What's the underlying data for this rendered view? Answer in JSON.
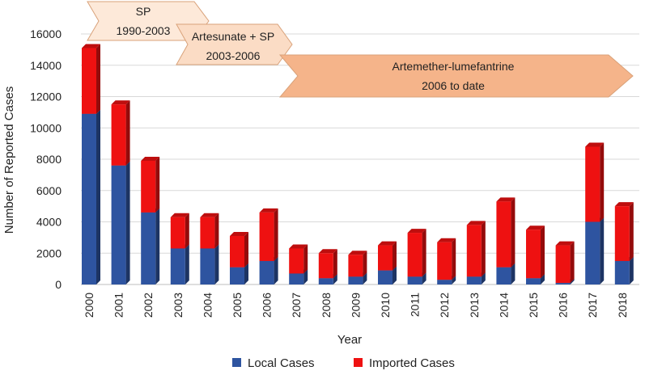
{
  "chart_data": {
    "type": "bar",
    "stacked": true,
    "xlabel": "Year",
    "ylabel": "Number of Reported Cases",
    "ylim": [
      0,
      16000
    ],
    "yticks": [
      0,
      2000,
      4000,
      6000,
      8000,
      10000,
      12000,
      14000,
      16000
    ],
    "grid": true,
    "legend_position": "bottom",
    "categories": [
      "2000",
      "2001",
      "2002",
      "2003",
      "2004",
      "2005",
      "2006",
      "2007",
      "2008",
      "2009",
      "2010",
      "2011",
      "2012",
      "2013",
      "2014",
      "2015",
      "2016",
      "2017",
      "2018"
    ],
    "series": [
      {
        "name": "Local Cases",
        "color": "#2e54a0",
        "values": [
          10900,
          7600,
          4600,
          2300,
          2300,
          1100,
          1500,
          700,
          400,
          500,
          900,
          500,
          300,
          500,
          1100,
          400,
          100,
          4000,
          1500
        ]
      },
      {
        "name": "Imported Cases",
        "color": "#ee1111",
        "values": [
          4200,
          3900,
          3300,
          2000,
          2000,
          2000,
          3100,
          1600,
          1600,
          1400,
          1600,
          2800,
          2400,
          3300,
          4200,
          3100,
          2400,
          4800,
          3500
        ]
      }
    ],
    "annotations": [
      {
        "line1": "SP",
        "line2": "1990-2003",
        "color": "#fde9d9"
      },
      {
        "line1": "Artesunate + SP",
        "line2": "2003-2006",
        "color": "#fbdcc5"
      },
      {
        "line1": "Artemether-lumefantrine",
        "line2": "2006 to date",
        "color": "#f5b48a"
      }
    ]
  }
}
